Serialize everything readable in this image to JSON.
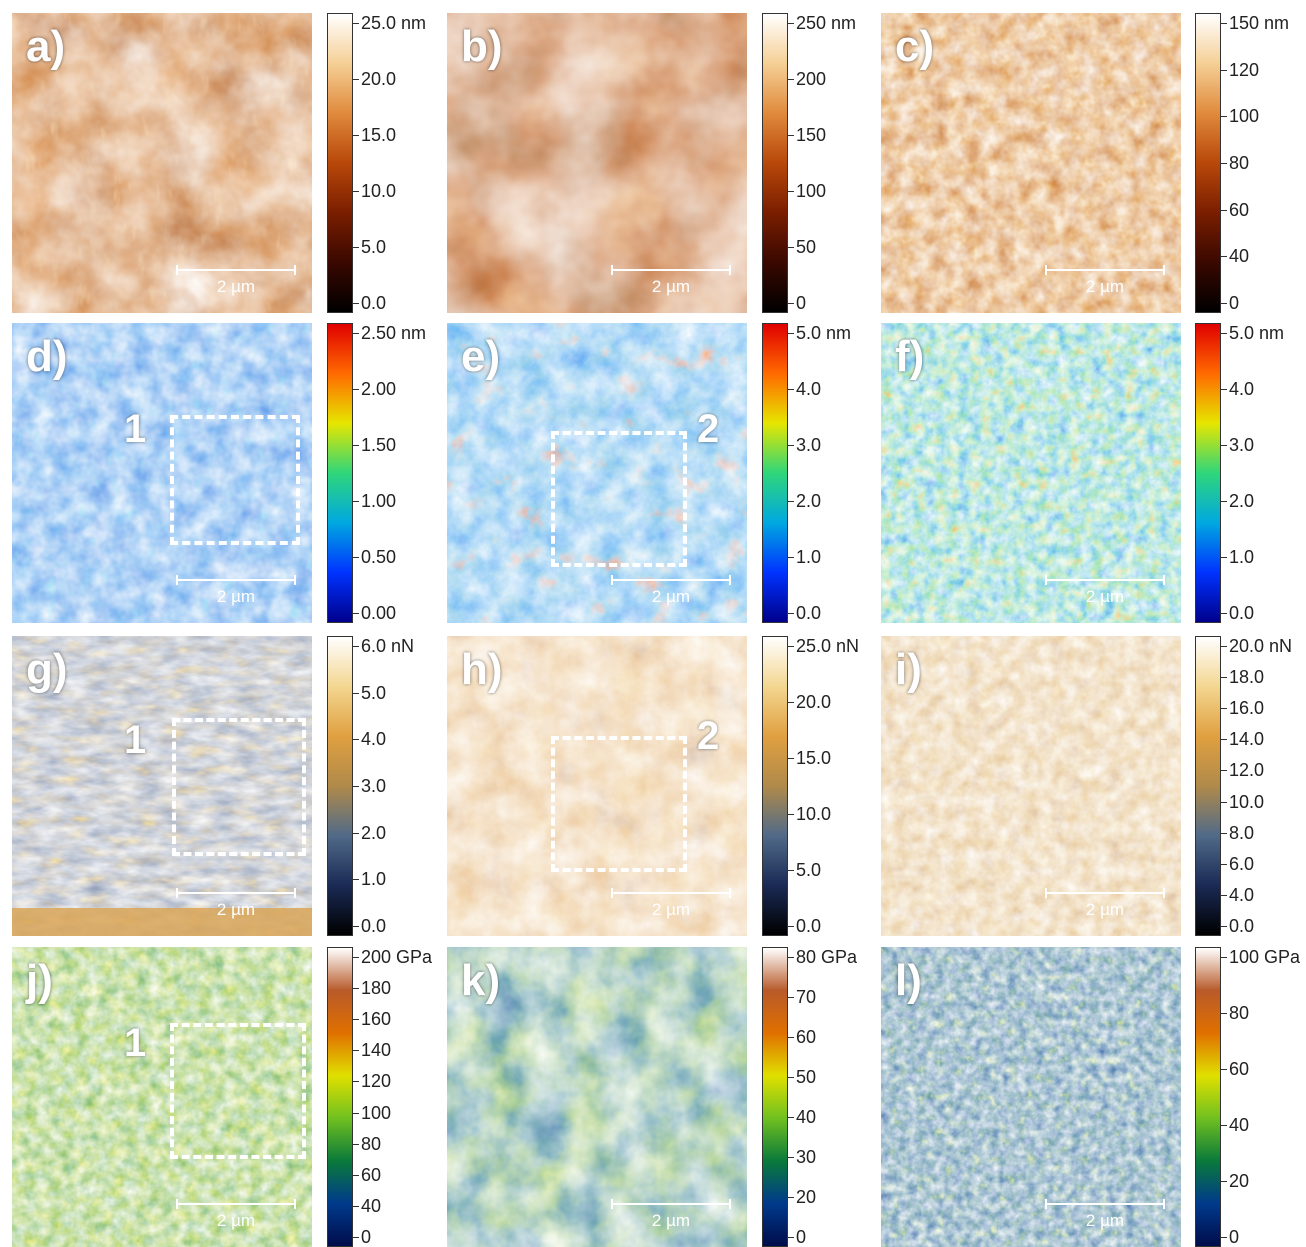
{
  "scale_bar_label": "2 µm",
  "rows": [
    {
      "panels": [
        {
          "label": "a)",
          "region_number": "",
          "roi": false
        },
        {
          "label": "b)",
          "region_number": "",
          "roi": false
        },
        {
          "label": "c)",
          "region_number": "",
          "roi": false
        }
      ],
      "colorbars": [
        {
          "ticks": [
            "25.0 nm",
            "20.0",
            "15.0",
            "10.0",
            "5.0",
            "0.0"
          ]
        },
        {
          "ticks": [
            "250 nm",
            "200",
            "150",
            "100",
            "50",
            "0"
          ]
        },
        {
          "ticks": [
            "150 nm",
            "120",
            "100",
            "80",
            "60",
            "40",
            "0"
          ]
        }
      ]
    },
    {
      "panels": [
        {
          "label": "d)",
          "region_number": "1",
          "roi": true
        },
        {
          "label": "e)",
          "region_number": "2",
          "roi": true
        },
        {
          "label": "f)",
          "region_number": "",
          "roi": false
        }
      ],
      "colorbars": [
        {
          "ticks": [
            "2.50 nm",
            "2.00",
            "1.50",
            "1.00",
            "0.50",
            "0.00"
          ]
        },
        {
          "ticks": [
            "5.0 nm",
            "4.0",
            "3.0",
            "2.0",
            "1.0",
            "0.0"
          ]
        },
        {
          "ticks": [
            "5.0 nm",
            "4.0",
            "3.0",
            "2.0",
            "1.0",
            "0.0"
          ]
        }
      ]
    },
    {
      "panels": [
        {
          "label": "g)",
          "region_number": "1",
          "roi": true
        },
        {
          "label": "h)",
          "region_number": "2",
          "roi": true
        },
        {
          "label": "i)",
          "region_number": "",
          "roi": false
        }
      ],
      "colorbars": [
        {
          "ticks": [
            "6.0 nN",
            "5.0",
            "4.0",
            "3.0",
            "2.0",
            "1.0",
            "0.0"
          ]
        },
        {
          "ticks": [
            "25.0 nN",
            "20.0",
            "15.0",
            "10.0",
            "5.0",
            "0.0"
          ]
        },
        {
          "ticks": [
            "20.0 nN",
            "18.0",
            "16.0",
            "14.0",
            "12.0",
            "10.0",
            "8.0",
            "6.0",
            "4.0",
            "0.0"
          ]
        }
      ]
    },
    {
      "panels": [
        {
          "label": "j)",
          "region_number": "1",
          "roi": true
        },
        {
          "label": "k)",
          "region_number": "",
          "roi": false
        },
        {
          "label": "l)",
          "region_number": "",
          "roi": false
        }
      ],
      "colorbars": [
        {
          "ticks": [
            "200 GPa",
            "180",
            "160",
            "140",
            "120",
            "100",
            "80",
            "60",
            "40",
            "0"
          ]
        },
        {
          "ticks": [
            "80 GPa",
            "70",
            "60",
            "50",
            "40",
            "30",
            "20",
            "0"
          ]
        },
        {
          "ticks": [
            "100 GPa",
            "80",
            "60",
            "40",
            "20",
            "0"
          ]
        }
      ]
    }
  ],
  "colormaps": {
    "topography": [
      "#000000",
      "#3a0800",
      "#7a1e00",
      "#b8480a",
      "#e08a3c",
      "#f5cf95",
      "#ffffff"
    ],
    "rainbow": [
      "#00008c",
      "#0033ff",
      "#00a8e0",
      "#2fd67a",
      "#e6e600",
      "#ff6a00",
      "#e00000"
    ],
    "adhesion": [
      "#000000",
      "#1a2a55",
      "#506a88",
      "#b08a4a",
      "#e0a040",
      "#f3d690",
      "#ffffff"
    ],
    "modulus": [
      "#000c4a",
      "#003a8c",
      "#0a7a3a",
      "#70c020",
      "#e0e000",
      "#e07000",
      "#b85a2a",
      "#ffffff"
    ]
  }
}
